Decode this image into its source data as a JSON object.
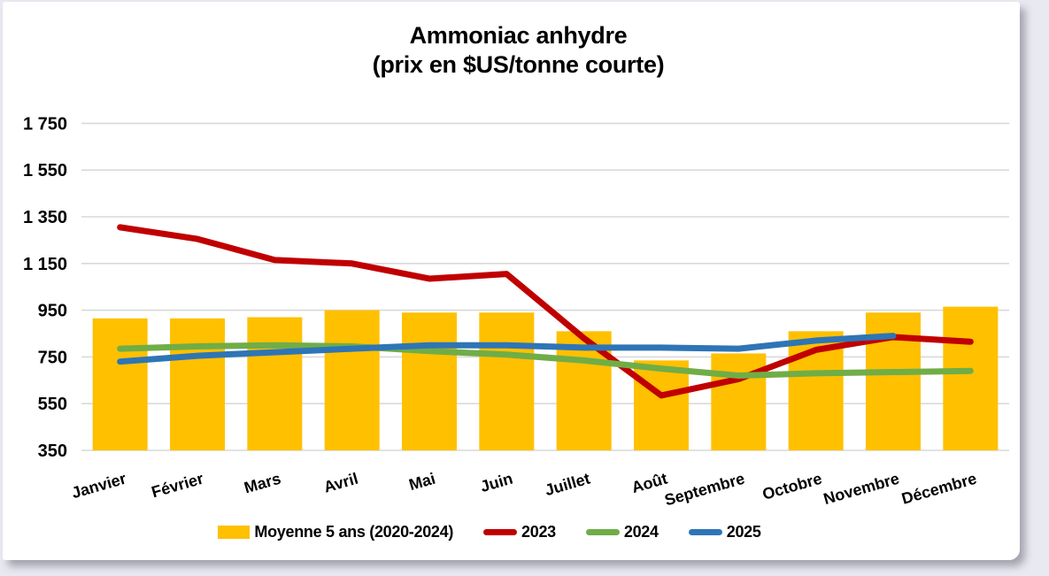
{
  "page": {
    "title_line1": "Ammoniac anhydre",
    "title_line2": "(prix en $US/tonne courte)"
  },
  "chart_data": {
    "type": "bar",
    "subtype": "combo-bar-and-lines",
    "title": "Ammoniac anhydre",
    "subtitle": "(prix en $US/tonne courte)",
    "xlabel": "",
    "ylabel": "prix en $US/tonne courte",
    "categories": [
      "Janvier",
      "Février",
      "Mars",
      "Avril",
      "Mai",
      "Juin",
      "Juillet",
      "Août",
      "Septembre",
      "Octobre",
      "Novembre",
      "Décembre"
    ],
    "y_axis": {
      "min": 350,
      "max": 1750,
      "tick_step": 200,
      "tick_labels": [
        "350",
        "550",
        "750",
        "950",
        "1 150",
        "1 350",
        "1 550",
        "1 750"
      ],
      "gridlines": true
    },
    "series": [
      {
        "name": "Moyenne 5 ans (2020-2024)",
        "type": "bar",
        "color": "#FFC000",
        "values": [
          915,
          915,
          920,
          950,
          940,
          940,
          860,
          735,
          765,
          860,
          940,
          965
        ]
      },
      {
        "name": "2023",
        "type": "line",
        "color": "#C00000",
        "values": [
          1305,
          1255,
          1165,
          1150,
          1085,
          1105,
          830,
          585,
          655,
          780,
          835,
          815
        ]
      },
      {
        "name": "2024",
        "type": "line",
        "color": "#70AD47",
        "values": [
          785,
          795,
          800,
          795,
          775,
          760,
          735,
          700,
          670,
          680,
          685,
          690
        ]
      },
      {
        "name": "2025",
        "type": "line",
        "color": "#2E75B6",
        "values": [
          730,
          755,
          770,
          785,
          800,
          800,
          790,
          790,
          785,
          820,
          840,
          null
        ]
      }
    ],
    "legend_position": "bottom",
    "colors": {
      "grid": "#D9D9D9",
      "text": "#000000",
      "card_background": "#FFFFFF",
      "page_background": "#E9E9F2"
    }
  }
}
